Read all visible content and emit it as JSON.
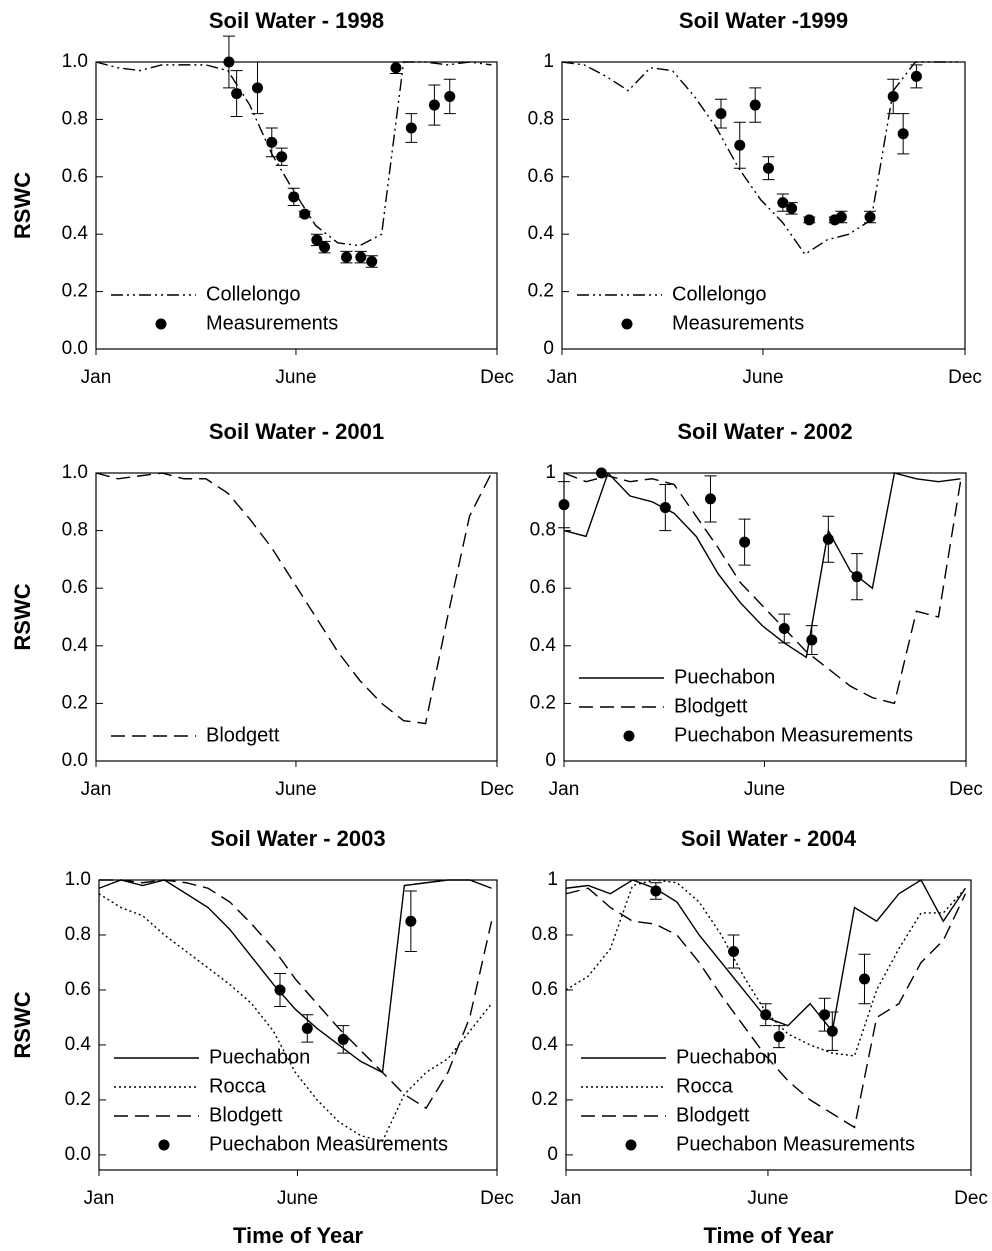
{
  "chart_data": [
    {
      "type": "line",
      "title": "Soil Water - 1998",
      "ylabel": "RSWC",
      "xlim": [
        0,
        365
      ],
      "xticks": [
        {
          "value": 0,
          "label": "Jan"
        },
        {
          "value": 182,
          "label": "June"
        },
        {
          "value": 365,
          "label": "Dec"
        }
      ],
      "ylim": [
        0,
        1
      ],
      "yticks": [
        {
          "value": 0,
          "label": "0.0"
        },
        0.2,
        0.4,
        0.6,
        0.8,
        {
          "value": 1,
          "label": "1.0"
        }
      ],
      "legend": "lower left",
      "x": [
        0,
        20,
        40,
        60,
        80,
        100,
        120,
        140,
        160,
        180,
        200,
        220,
        240,
        260,
        280,
        300,
        320,
        340,
        360
      ],
      "series": [
        {
          "name": "Collelongo",
          "color": "#000000",
          "line_style": "dashdot",
          "values": [
            1.0,
            0.98,
            0.97,
            0.99,
            0.99,
            0.99,
            0.97,
            0.85,
            0.68,
            0.55,
            0.43,
            0.37,
            0.36,
            0.4,
            1.0,
            1.0,
            0.99,
            1.0,
            0.99
          ]
        },
        {
          "name": "Measurements",
          "color": "#000000",
          "type": "scatter",
          "x": [
            121,
            128,
            147,
            160,
            169,
            180,
            190,
            201,
            208,
            228,
            241,
            251,
            273,
            287,
            308,
            322
          ],
          "values": [
            1.0,
            0.89,
            0.91,
            0.72,
            0.67,
            0.53,
            0.47,
            0.38,
            0.355,
            0.32,
            0.32,
            0.305,
            0.98,
            0.77,
            0.85,
            0.88
          ],
          "errors": [
            0.09,
            0.08,
            0.09,
            0.05,
            0.03,
            0.03,
            0.01,
            0.02,
            0.02,
            0.02,
            0.02,
            0.02,
            0.02,
            0.05,
            0.07,
            0.06
          ]
        }
      ]
    },
    {
      "type": "line",
      "title": "Soil Water -1999",
      "xlim": [
        0,
        365
      ],
      "xticks": [
        {
          "value": 0,
          "label": "Jan"
        },
        {
          "value": 182,
          "label": "June"
        },
        {
          "value": 365,
          "label": "Dec"
        }
      ],
      "ylim": [
        0,
        1
      ],
      "yticks": [
        0,
        0.2,
        0.4,
        0.6,
        0.8,
        1
      ],
      "legend": "lower left",
      "x": [
        0,
        20,
        40,
        60,
        80,
        100,
        120,
        140,
        160,
        180,
        200,
        220,
        240,
        260,
        280,
        300,
        320,
        340,
        360
      ],
      "series": [
        {
          "name": "Collelongo",
          "color": "#000000",
          "line_style": "dashdot",
          "values": [
            1.0,
            0.99,
            0.95,
            0.9,
            0.98,
            0.97,
            0.88,
            0.77,
            0.63,
            0.52,
            0.44,
            0.33,
            0.38,
            0.4,
            0.45,
            0.9,
            1.0,
            1.0,
            1.0
          ]
        },
        {
          "name": "Measurements",
          "color": "#000000",
          "type": "scatter",
          "x": [
            144,
            161,
            175,
            187,
            200,
            208,
            224,
            247,
            253,
            279,
            300,
            309,
            321
          ],
          "values": [
            0.82,
            0.71,
            0.85,
            0.63,
            0.51,
            0.49,
            0.45,
            0.45,
            0.46,
            0.46,
            0.88,
            0.75,
            0.95
          ],
          "errors": [
            0.05,
            0.08,
            0.06,
            0.04,
            0.03,
            0.02,
            0.01,
            0.01,
            0.02,
            0.02,
            0.06,
            0.07,
            0.04
          ]
        }
      ]
    },
    {
      "type": "line",
      "title": "Soil Water - 2001",
      "ylabel": "RSWC",
      "xlim": [
        0,
        365
      ],
      "xticks": [
        {
          "value": 0,
          "label": "Jan"
        },
        {
          "value": 182,
          "label": "June"
        },
        {
          "value": 365,
          "label": "Dec"
        }
      ],
      "ylim": [
        0,
        1
      ],
      "yticks": [
        {
          "value": 0,
          "label": "0.0"
        },
        0.2,
        0.4,
        0.6,
        0.8,
        {
          "value": 1,
          "label": "1.0"
        }
      ],
      "legend": "lower left",
      "x": [
        0,
        20,
        40,
        60,
        80,
        100,
        120,
        140,
        160,
        180,
        200,
        220,
        240,
        260,
        280,
        300,
        320,
        340,
        360
      ],
      "series": [
        {
          "name": "Blodgett",
          "color": "#000000",
          "line_style": "dash",
          "values": [
            1.0,
            0.98,
            0.99,
            1.0,
            0.98,
            0.98,
            0.93,
            0.84,
            0.74,
            0.62,
            0.5,
            0.38,
            0.28,
            0.2,
            0.14,
            0.13,
            0.5,
            0.85,
            1.0
          ]
        }
      ]
    },
    {
      "type": "line",
      "title": "Soil Water - 2002",
      "xlim": [
        0,
        365
      ],
      "xticks": [
        {
          "value": 0,
          "label": "Jan"
        },
        {
          "value": 182,
          "label": "June"
        },
        {
          "value": 365,
          "label": "Dec"
        }
      ],
      "ylim": [
        0,
        1
      ],
      "yticks": [
        0,
        0.2,
        0.4,
        0.6,
        0.8,
        1
      ],
      "legend": "lower left",
      "x": [
        0,
        20,
        40,
        60,
        80,
        100,
        120,
        140,
        160,
        180,
        200,
        220,
        240,
        260,
        280,
        300,
        320,
        340,
        360
      ],
      "series": [
        {
          "name": "Puechabon",
          "color": "#000000",
          "line_style": "solid",
          "values": [
            0.8,
            0.78,
            1.0,
            0.92,
            0.9,
            0.86,
            0.78,
            0.65,
            0.55,
            0.47,
            0.41,
            0.36,
            0.8,
            0.66,
            0.6,
            1.0,
            0.98,
            0.97,
            0.98
          ]
        },
        {
          "name": "Blodgett",
          "color": "#000000",
          "line_style": "dash",
          "values": [
            1.0,
            0.97,
            0.99,
            0.97,
            0.98,
            0.96,
            0.85,
            0.74,
            0.62,
            0.54,
            0.46,
            0.38,
            0.32,
            0.26,
            0.22,
            0.2,
            0.52,
            0.5,
            0.97
          ]
        },
        {
          "name": "Puechabon Measurements",
          "color": "#000000",
          "type": "scatter",
          "x": [
            0,
            34,
            92,
            133,
            164,
            200,
            225,
            240,
            266
          ],
          "values": [
            0.89,
            1.0,
            0.88,
            0.91,
            0.76,
            0.46,
            0.42,
            0.77,
            0.64
          ],
          "errors": [
            0.08,
            0.0,
            0.08,
            0.08,
            0.08,
            0.05,
            0.05,
            0.08,
            0.08
          ]
        }
      ]
    },
    {
      "type": "line",
      "title": "Soil Water - 2003",
      "ylabel": "RSWC",
      "xlabel": "Time of Year",
      "xlim": [
        0,
        365
      ],
      "xticks": [
        {
          "value": 0,
          "label": "Jan"
        },
        {
          "value": 182,
          "label": "June"
        },
        {
          "value": 365,
          "label": "Dec"
        }
      ],
      "ylim": [
        -0.055,
        1
      ],
      "yticks": [
        {
          "value": 0,
          "label": "0.0"
        },
        0.2,
        0.4,
        0.6,
        0.8,
        {
          "value": 1,
          "label": "1.0"
        }
      ],
      "legend": "lower left",
      "x": [
        0,
        20,
        40,
        60,
        80,
        100,
        120,
        140,
        160,
        180,
        200,
        220,
        240,
        260,
        280,
        300,
        320,
        340,
        360
      ],
      "series": [
        {
          "name": "Puechabon",
          "color": "#000000",
          "line_style": "solid",
          "values": [
            0.97,
            1.0,
            0.98,
            1.0,
            0.95,
            0.9,
            0.82,
            0.72,
            0.62,
            0.53,
            0.46,
            0.4,
            0.34,
            0.3,
            0.98,
            0.99,
            1.0,
            1.0,
            0.97
          ]
        },
        {
          "name": "Rocca",
          "color": "#000000",
          "line_style": "dot",
          "values": [
            0.95,
            0.9,
            0.87,
            0.8,
            0.74,
            0.68,
            0.62,
            0.55,
            0.45,
            0.3,
            0.2,
            0.12,
            0.07,
            0.05,
            0.22,
            0.3,
            0.35,
            0.45,
            0.55
          ]
        },
        {
          "name": "Blodgett",
          "color": "#000000",
          "line_style": "dash",
          "values": [
            1.0,
            1.0,
            0.99,
            1.0,
            0.99,
            0.97,
            0.92,
            0.84,
            0.75,
            0.64,
            0.55,
            0.46,
            0.38,
            0.3,
            0.22,
            0.17,
            0.3,
            0.5,
            0.85
          ]
        },
        {
          "name": "Puechabon Measurements",
          "color": "#000000",
          "type": "scatter",
          "x": [
            166,
            191,
            224,
            286
          ],
          "values": [
            0.6,
            0.46,
            0.42,
            0.85
          ],
          "errors": [
            0.06,
            0.05,
            0.05,
            0.11
          ]
        }
      ]
    },
    {
      "type": "line",
      "title": "Soil Water - 2004",
      "xlabel": "Time of Year",
      "xlim": [
        0,
        365
      ],
      "xticks": [
        {
          "value": 0,
          "label": "Jan"
        },
        {
          "value": 182,
          "label": "June"
        },
        {
          "value": 365,
          "label": "Dec"
        }
      ],
      "ylim": [
        -0.055,
        1
      ],
      "yticks": [
        0,
        0.2,
        0.4,
        0.6,
        0.8,
        1
      ],
      "legend": "lower left",
      "x": [
        0,
        20,
        40,
        60,
        80,
        100,
        120,
        140,
        160,
        180,
        200,
        220,
        240,
        260,
        280,
        300,
        320,
        340,
        360
      ],
      "series": [
        {
          "name": "Puechabon",
          "color": "#000000",
          "line_style": "solid",
          "values": [
            0.97,
            0.98,
            0.95,
            1.0,
            0.97,
            0.92,
            0.8,
            0.7,
            0.6,
            0.5,
            0.47,
            0.55,
            0.45,
            0.9,
            0.85,
            0.95,
            1.0,
            0.85,
            0.97
          ]
        },
        {
          "name": "Rocca",
          "color": "#000000",
          "line_style": "dot",
          "values": [
            0.6,
            0.65,
            0.75,
            0.98,
            1.0,
            0.99,
            0.92,
            0.8,
            0.65,
            0.52,
            0.44,
            0.4,
            0.37,
            0.36,
            0.6,
            0.75,
            0.88,
            0.88,
            0.97
          ]
        },
        {
          "name": "Blodgett",
          "color": "#000000",
          "line_style": "dash",
          "values": [
            0.95,
            0.97,
            0.9,
            0.85,
            0.84,
            0.8,
            0.7,
            0.58,
            0.47,
            0.36,
            0.27,
            0.2,
            0.15,
            0.1,
            0.5,
            0.55,
            0.7,
            0.78,
            0.95
          ]
        },
        {
          "name": "Puechabon Measurements",
          "color": "#000000",
          "type": "scatter",
          "x": [
            81,
            151,
            180,
            192,
            233,
            240,
            269
          ],
          "values": [
            0.96,
            0.74,
            0.51,
            0.43,
            0.51,
            0.45,
            0.64
          ],
          "errors": [
            0.03,
            0.06,
            0.04,
            0.04,
            0.06,
            0.07,
            0.09
          ]
        }
      ]
    }
  ]
}
